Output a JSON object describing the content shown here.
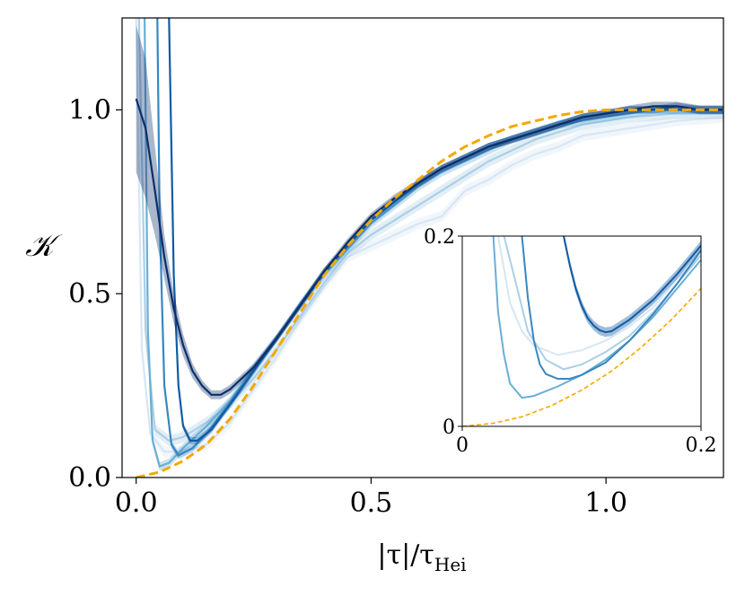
{
  "chart_data": {
    "type": "line",
    "xlabel": "|τ|/τ",
    "xlabel_sub": "Hei",
    "ylabel": "𝒦",
    "xlim": [
      -0.03,
      1.25
    ],
    "ylim": [
      0.0,
      1.25
    ],
    "xticks": [
      {
        "value": 0.0,
        "label": "0.0"
      },
      {
        "value": 0.5,
        "label": "0.5"
      },
      {
        "value": 1.0,
        "label": "1.0"
      }
    ],
    "yticks": [
      {
        "value": 0.0,
        "label": "0.0"
      },
      {
        "value": 0.5,
        "label": "0.5"
      },
      {
        "value": 1.0,
        "label": "1.0"
      }
    ],
    "grid": false,
    "colors": {
      "reference": "#f5a800",
      "series": [
        "#d6e6f4",
        "#abcfe5",
        "#6aaed6",
        "#3787c0",
        "#105ba4",
        "#0b2f6b"
      ]
    },
    "series": [
      {
        "x": [
          0.0,
          0.012,
          0.03,
          0.06,
          0.1,
          0.15,
          0.2,
          0.25,
          0.3,
          0.35,
          0.4,
          0.45,
          0.5,
          0.55,
          0.6,
          0.65,
          0.7,
          0.75,
          0.8,
          0.85,
          0.9,
          0.95,
          1.0,
          1.05,
          1.1,
          1.15,
          1.2,
          1.25
        ],
        "y": [
          1.25,
          0.35,
          0.12,
          0.07,
          0.07,
          0.09,
          0.15,
          0.24,
          0.33,
          0.43,
          0.52,
          0.6,
          0.63,
          0.66,
          0.69,
          0.71,
          0.78,
          0.81,
          0.85,
          0.88,
          0.9,
          0.93,
          0.94,
          0.95,
          0.96,
          0.97,
          0.975,
          0.98
        ],
        "band": 0.015
      },
      {
        "x": [
          0.006,
          0.02,
          0.04,
          0.07,
          0.1,
          0.15,
          0.2,
          0.25,
          0.3,
          0.35,
          0.4,
          0.45,
          0.5,
          0.55,
          0.6,
          0.65,
          0.7,
          0.75,
          0.8,
          0.85,
          0.9,
          0.95,
          1.0,
          1.05,
          1.1,
          1.15,
          1.2,
          1.25
        ],
        "y": [
          1.25,
          0.4,
          0.13,
          0.1,
          0.11,
          0.15,
          0.2,
          0.27,
          0.35,
          0.44,
          0.53,
          0.61,
          0.66,
          0.7,
          0.74,
          0.78,
          0.82,
          0.86,
          0.89,
          0.92,
          0.94,
          0.96,
          0.97,
          0.98,
          0.985,
          0.99,
          0.99,
          0.99
        ],
        "band": 0.015
      },
      {
        "x": [
          0.018,
          0.025,
          0.035,
          0.05,
          0.07,
          0.1,
          0.15,
          0.2,
          0.25,
          0.3,
          0.35,
          0.4,
          0.45,
          0.5,
          0.55,
          0.6,
          0.65,
          0.7,
          0.75,
          0.8,
          0.85,
          0.9,
          0.95,
          1.0,
          1.05,
          1.1,
          1.15,
          1.2,
          1.25
        ],
        "y": [
          1.25,
          0.4,
          0.1,
          0.03,
          0.04,
          0.08,
          0.14,
          0.21,
          0.3,
          0.38,
          0.47,
          0.55,
          0.62,
          0.69,
          0.74,
          0.79,
          0.83,
          0.86,
          0.89,
          0.92,
          0.94,
          0.96,
          0.97,
          0.98,
          0.99,
          1.0,
          1.0,
          1.0,
          1.0
        ],
        "band": 0.012
      },
      {
        "x": [
          0.045,
          0.05,
          0.06,
          0.075,
          0.09,
          0.12,
          0.15,
          0.2,
          0.25,
          0.3,
          0.35,
          0.4,
          0.45,
          0.5,
          0.55,
          0.6,
          0.65,
          0.7,
          0.75,
          0.8,
          0.85,
          0.9,
          0.95,
          1.0,
          1.05,
          1.1,
          1.15,
          1.2,
          1.25
        ],
        "y": [
          1.25,
          0.7,
          0.25,
          0.09,
          0.06,
          0.08,
          0.12,
          0.2,
          0.29,
          0.38,
          0.47,
          0.56,
          0.63,
          0.7,
          0.75,
          0.8,
          0.84,
          0.87,
          0.9,
          0.92,
          0.94,
          0.96,
          0.98,
          0.99,
          1.0,
          1.0,
          1.0,
          1.0,
          1.0
        ],
        "band": 0.01
      },
      {
        "x": [
          0.07,
          0.08,
          0.09,
          0.1,
          0.115,
          0.13,
          0.16,
          0.2,
          0.25,
          0.3,
          0.35,
          0.4,
          0.45,
          0.5,
          0.55,
          0.6,
          0.65,
          0.7,
          0.75,
          0.8,
          0.85,
          0.9,
          0.95,
          1.0,
          1.05,
          1.1,
          1.15,
          1.2,
          1.25
        ],
        "y": [
          1.25,
          0.55,
          0.25,
          0.14,
          0.1,
          0.1,
          0.13,
          0.2,
          0.29,
          0.38,
          0.47,
          0.56,
          0.63,
          0.7,
          0.75,
          0.8,
          0.84,
          0.87,
          0.9,
          0.92,
          0.94,
          0.96,
          0.98,
          0.99,
          1.0,
          1.0,
          1.01,
          1.0,
          1.0
        ],
        "band": 0.01
      },
      {
        "x": [
          0.0,
          0.02,
          0.04,
          0.06,
          0.08,
          0.1,
          0.12,
          0.14,
          0.16,
          0.18,
          0.2,
          0.25,
          0.3,
          0.35,
          0.4,
          0.45,
          0.5,
          0.55,
          0.6,
          0.65,
          0.7,
          0.75,
          0.8,
          0.85,
          0.9,
          0.95,
          1.0,
          1.05,
          1.1,
          1.15,
          1.2,
          1.25
        ],
        "y": [
          1.03,
          0.95,
          0.78,
          0.6,
          0.46,
          0.36,
          0.29,
          0.25,
          0.225,
          0.225,
          0.24,
          0.3,
          0.38,
          0.47,
          0.56,
          0.64,
          0.71,
          0.76,
          0.8,
          0.84,
          0.87,
          0.9,
          0.92,
          0.94,
          0.96,
          0.98,
          0.99,
          1.0,
          1.01,
          1.01,
          1.0,
          1.0
        ],
        "band": 0.02,
        "band_detail": [
          0.2,
          0.19,
          0.12,
          0.06,
          0.04,
          0.03,
          0.02,
          0.015,
          0.012,
          0.012,
          0.012,
          0.01,
          0.01,
          0.01,
          0.01,
          0.01,
          0.01,
          0.01,
          0.01,
          0.01,
          0.01,
          0.01,
          0.01,
          0.01,
          0.01,
          0.01,
          0.01,
          0.012,
          0.012,
          0.012,
          0.012,
          0.012
        ]
      }
    ],
    "reference_curve": {
      "name": "",
      "style": "dashed",
      "x": [
        0.0,
        0.05,
        0.1,
        0.15,
        0.2,
        0.25,
        0.3,
        0.35,
        0.4,
        0.45,
        0.5,
        0.55,
        0.6,
        0.65,
        0.7,
        0.75,
        0.8,
        0.85,
        0.9,
        0.95,
        1.0,
        1.05,
        1.1,
        1.15,
        1.2,
        1.25
      ],
      "y": [
        0.0,
        0.015,
        0.045,
        0.09,
        0.16,
        0.25,
        0.35,
        0.45,
        0.55,
        0.63,
        0.7,
        0.76,
        0.81,
        0.86,
        0.9,
        0.93,
        0.955,
        0.97,
        0.985,
        0.995,
        1.0,
        1.0,
        1.0,
        1.0,
        1.0,
        1.0
      ]
    },
    "inset": {
      "xlim": [
        0.0,
        0.2
      ],
      "ylim": [
        0.0,
        0.2
      ],
      "xticks": [
        {
          "value": 0.0,
          "label": "0"
        },
        {
          "value": 0.2,
          "label": "0.2"
        }
      ],
      "yticks": [
        {
          "value": 0.0,
          "label": "0"
        },
        {
          "value": 0.2,
          "label": "0.2"
        }
      ],
      "series": [
        {
          "x": [
            0.03,
            0.04,
            0.05,
            0.06,
            0.08,
            0.1,
            0.12,
            0.14,
            0.16,
            0.18,
            0.2
          ],
          "y": [
            0.2,
            0.13,
            0.1,
            0.085,
            0.075,
            0.08,
            0.09,
            0.105,
            0.125,
            0.155,
            0.18
          ]
        },
        {
          "x": [
            0.035,
            0.045,
            0.055,
            0.07,
            0.085,
            0.1,
            0.12,
            0.14,
            0.16,
            0.18,
            0.2
          ],
          "y": [
            0.2,
            0.15,
            0.1,
            0.07,
            0.06,
            0.065,
            0.078,
            0.095,
            0.12,
            0.15,
            0.18
          ]
        },
        {
          "x": [
            0.026,
            0.03,
            0.035,
            0.04,
            0.05,
            0.06,
            0.07,
            0.08,
            0.1,
            0.12,
            0.14,
            0.16,
            0.18,
            0.2
          ],
          "y": [
            0.2,
            0.12,
            0.075,
            0.045,
            0.03,
            0.032,
            0.037,
            0.042,
            0.054,
            0.07,
            0.09,
            0.115,
            0.145,
            0.175
          ]
        },
        {
          "x": [
            0.05,
            0.055,
            0.06,
            0.065,
            0.07,
            0.08,
            0.09,
            0.1,
            0.12,
            0.14,
            0.16,
            0.18,
            0.2
          ],
          "y": [
            0.2,
            0.135,
            0.09,
            0.065,
            0.055,
            0.05,
            0.05,
            0.054,
            0.067,
            0.09,
            0.118,
            0.15,
            0.185
          ]
        },
        {
          "x": [
            0.085,
            0.09,
            0.095,
            0.1,
            0.105,
            0.11,
            0.115,
            0.12,
            0.125,
            0.13,
            0.14,
            0.16,
            0.18,
            0.2
          ],
          "y": [
            0.2,
            0.17,
            0.145,
            0.127,
            0.114,
            0.106,
            0.101,
            0.099,
            0.1,
            0.104,
            0.112,
            0.133,
            0.16,
            0.19
          ],
          "band": 0.005
        }
      ],
      "reference_curve": {
        "x": [
          0.0,
          0.025,
          0.05,
          0.075,
          0.1,
          0.125,
          0.15,
          0.175,
          0.2
        ],
        "y": [
          0.0,
          0.003,
          0.01,
          0.022,
          0.038,
          0.058,
          0.083,
          0.112,
          0.145
        ]
      }
    }
  }
}
